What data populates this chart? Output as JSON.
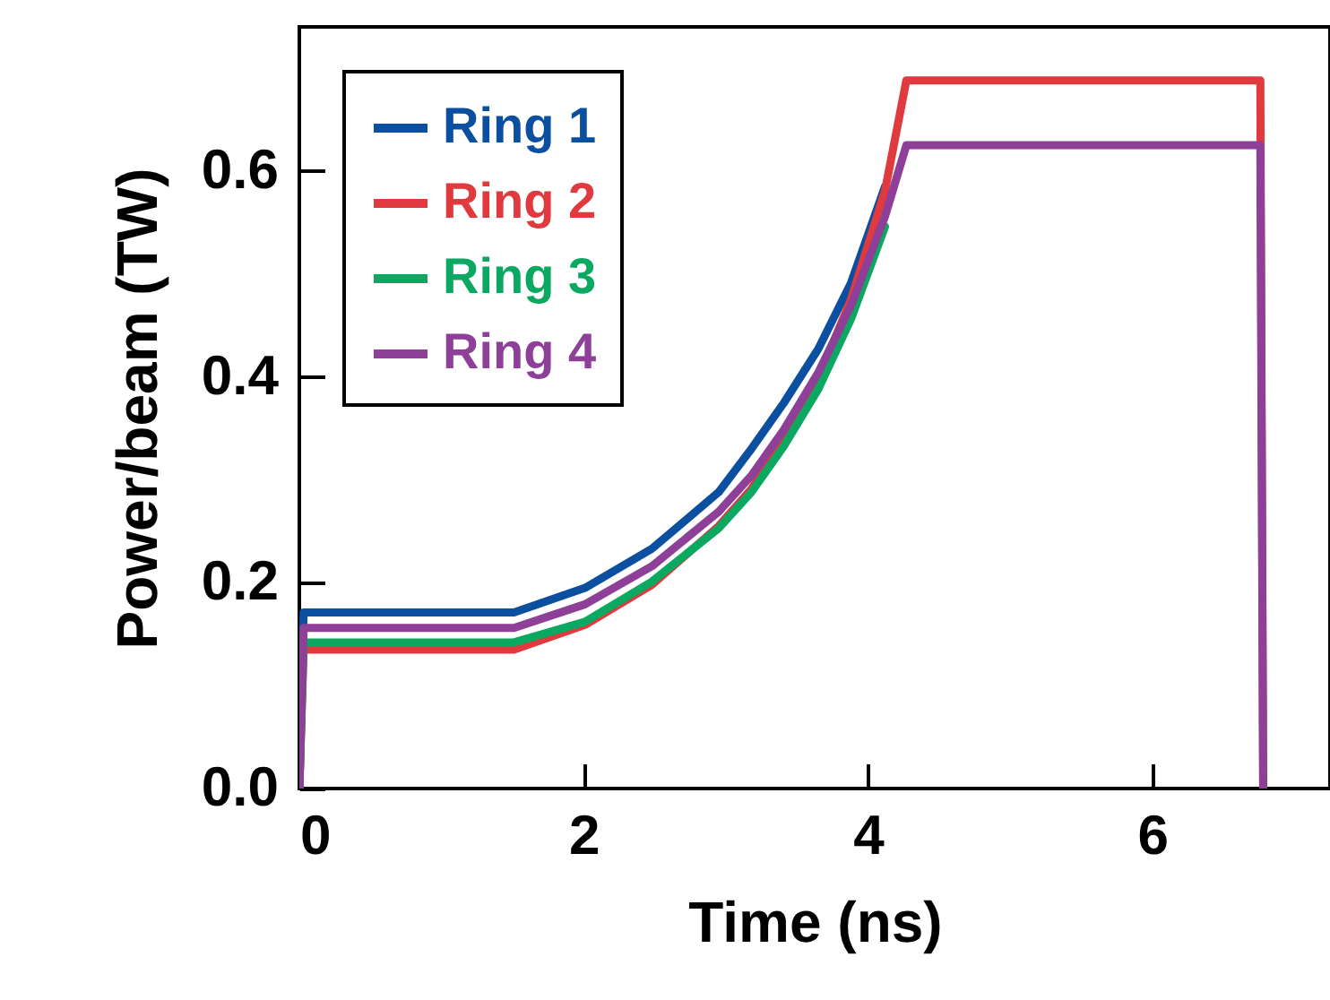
{
  "chart_data": {
    "type": "line",
    "xlabel": "Time (ns)",
    "ylabel": "Power/beam (TW)",
    "xlim": [
      0,
      7.25
    ],
    "ylim": [
      0,
      0.74
    ],
    "xticks": [
      0,
      2,
      4,
      6
    ],
    "yticks": [
      {
        "value": 0,
        "label": "0.0"
      },
      0.2,
      0.4,
      {
        "value": 0.6,
        "label": "0.6"
      }
    ],
    "grid": false,
    "legend": "top left",
    "marker": "none",
    "line_style": "solid",
    "series": [
      {
        "name": "Ring 1",
        "color": "#0a4fa0",
        "x": [
          0,
          0.03,
          1.51,
          2.01,
          2.48,
          2.95,
          3.18,
          3.41,
          3.65,
          3.88,
          4.12
        ],
        "values": [
          0,
          0.171,
          0.171,
          0.195,
          0.233,
          0.288,
          0.33,
          0.375,
          0.427,
          0.491,
          0.585
        ]
      },
      {
        "name": "Ring 2",
        "color": "#e0393e",
        "x": [
          0,
          0.03,
          1.51,
          2.01,
          2.48,
          2.95,
          3.18,
          3.41,
          3.65,
          3.88,
          4.12,
          4.27,
          6.76,
          6.78
        ],
        "values": [
          0,
          0.135,
          0.135,
          0.159,
          0.198,
          0.255,
          0.291,
          0.34,
          0.398,
          0.475,
          0.581,
          0.688,
          0.688,
          0
        ]
      },
      {
        "name": "Ring 3",
        "color": "#0aa861",
        "x": [
          0,
          0.03,
          1.51,
          2.01,
          2.48,
          2.95,
          3.18,
          3.41,
          3.65,
          3.88,
          4.12
        ],
        "values": [
          0,
          0.142,
          0.142,
          0.162,
          0.201,
          0.253,
          0.288,
          0.333,
          0.388,
          0.456,
          0.546
        ]
      },
      {
        "name": "Ring 4",
        "color": "#8e3f98",
        "x": [
          0,
          0.03,
          1.51,
          2.01,
          2.48,
          2.95,
          3.18,
          3.41,
          3.65,
          3.88,
          4.12,
          4.27,
          6.76,
          6.78
        ],
        "values": [
          0,
          0.156,
          0.156,
          0.179,
          0.216,
          0.269,
          0.304,
          0.349,
          0.404,
          0.469,
          0.556,
          0.625,
          0.625,
          0
        ]
      }
    ]
  }
}
